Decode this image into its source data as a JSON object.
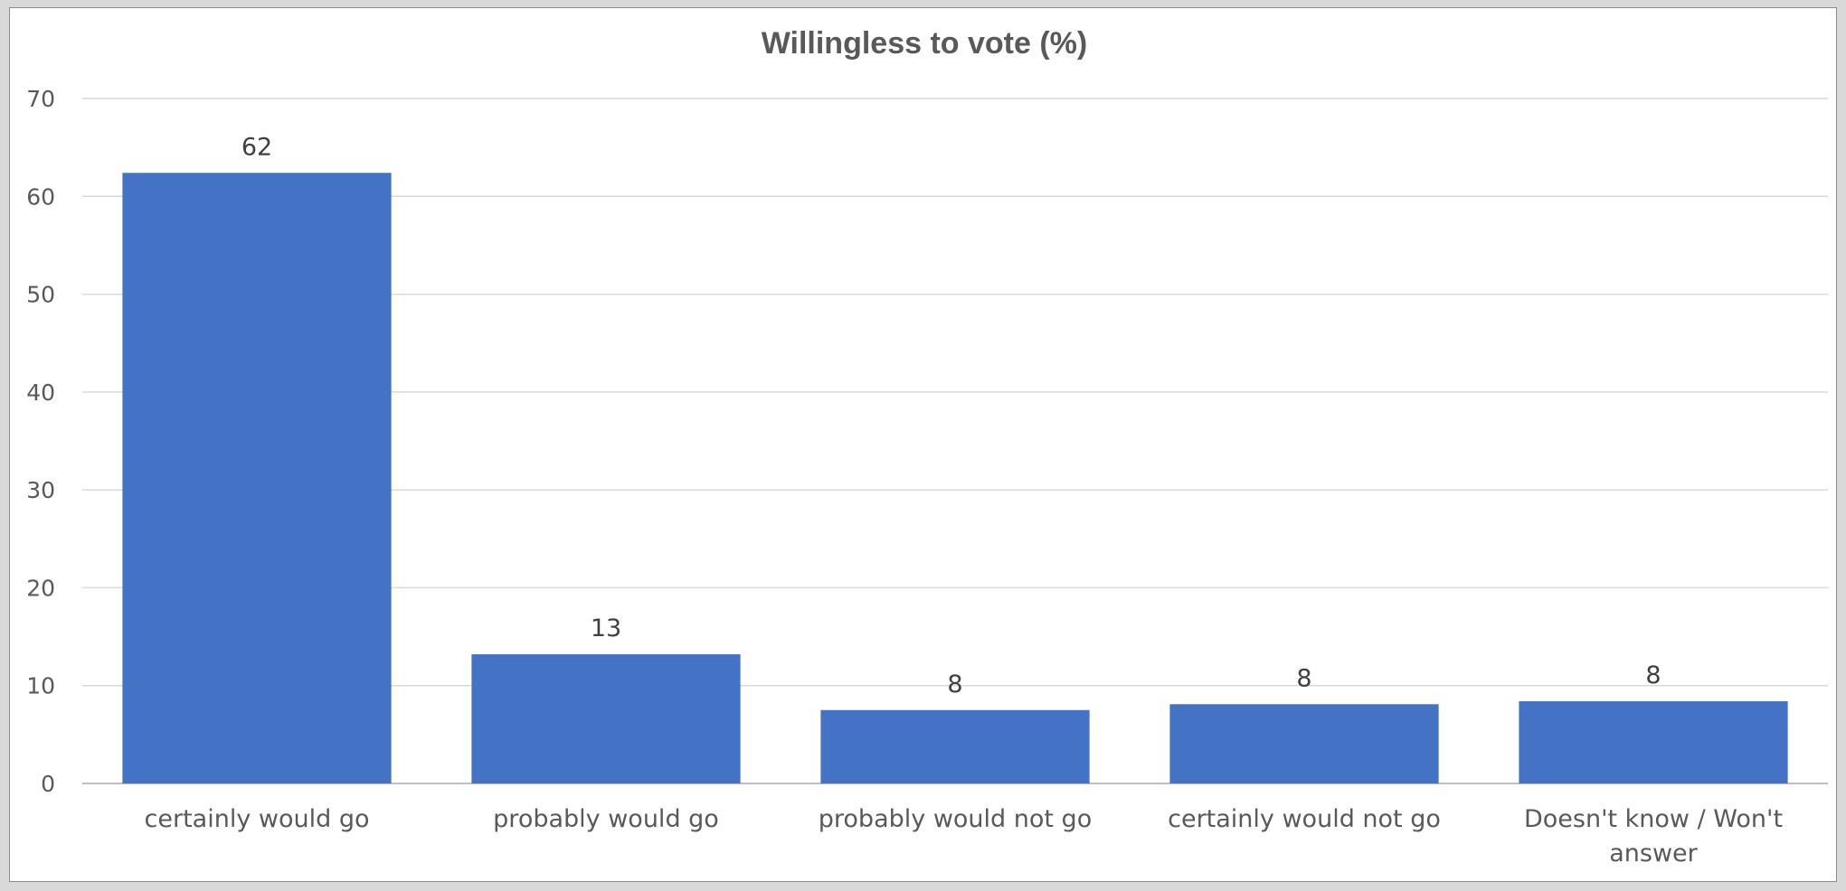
{
  "chart_data": {
    "type": "bar",
    "title": "Willingless to vote (%)",
    "categories": [
      [
        "certainly would go"
      ],
      [
        "probably would go"
      ],
      [
        "probably would not go"
      ],
      [
        "certainly would not go"
      ],
      [
        "Doesn't know / Won't",
        "answer"
      ]
    ],
    "values": [
      62.4,
      13.2,
      7.5,
      8.1,
      8.4
    ],
    "data_labels": [
      "62",
      "13",
      "8",
      "8",
      "8"
    ],
    "yticks": [
      "0",
      "10",
      "20",
      "30",
      "40",
      "50",
      "60",
      "70"
    ],
    "ylim": [
      0,
      70
    ],
    "xlabel": "",
    "ylabel": "",
    "grid": true,
    "legend": "none",
    "colors": {
      "bar": "#4472c4",
      "grid": "#d9d9d9",
      "axis": "#bfbfbf",
      "text": "#595959"
    }
  }
}
